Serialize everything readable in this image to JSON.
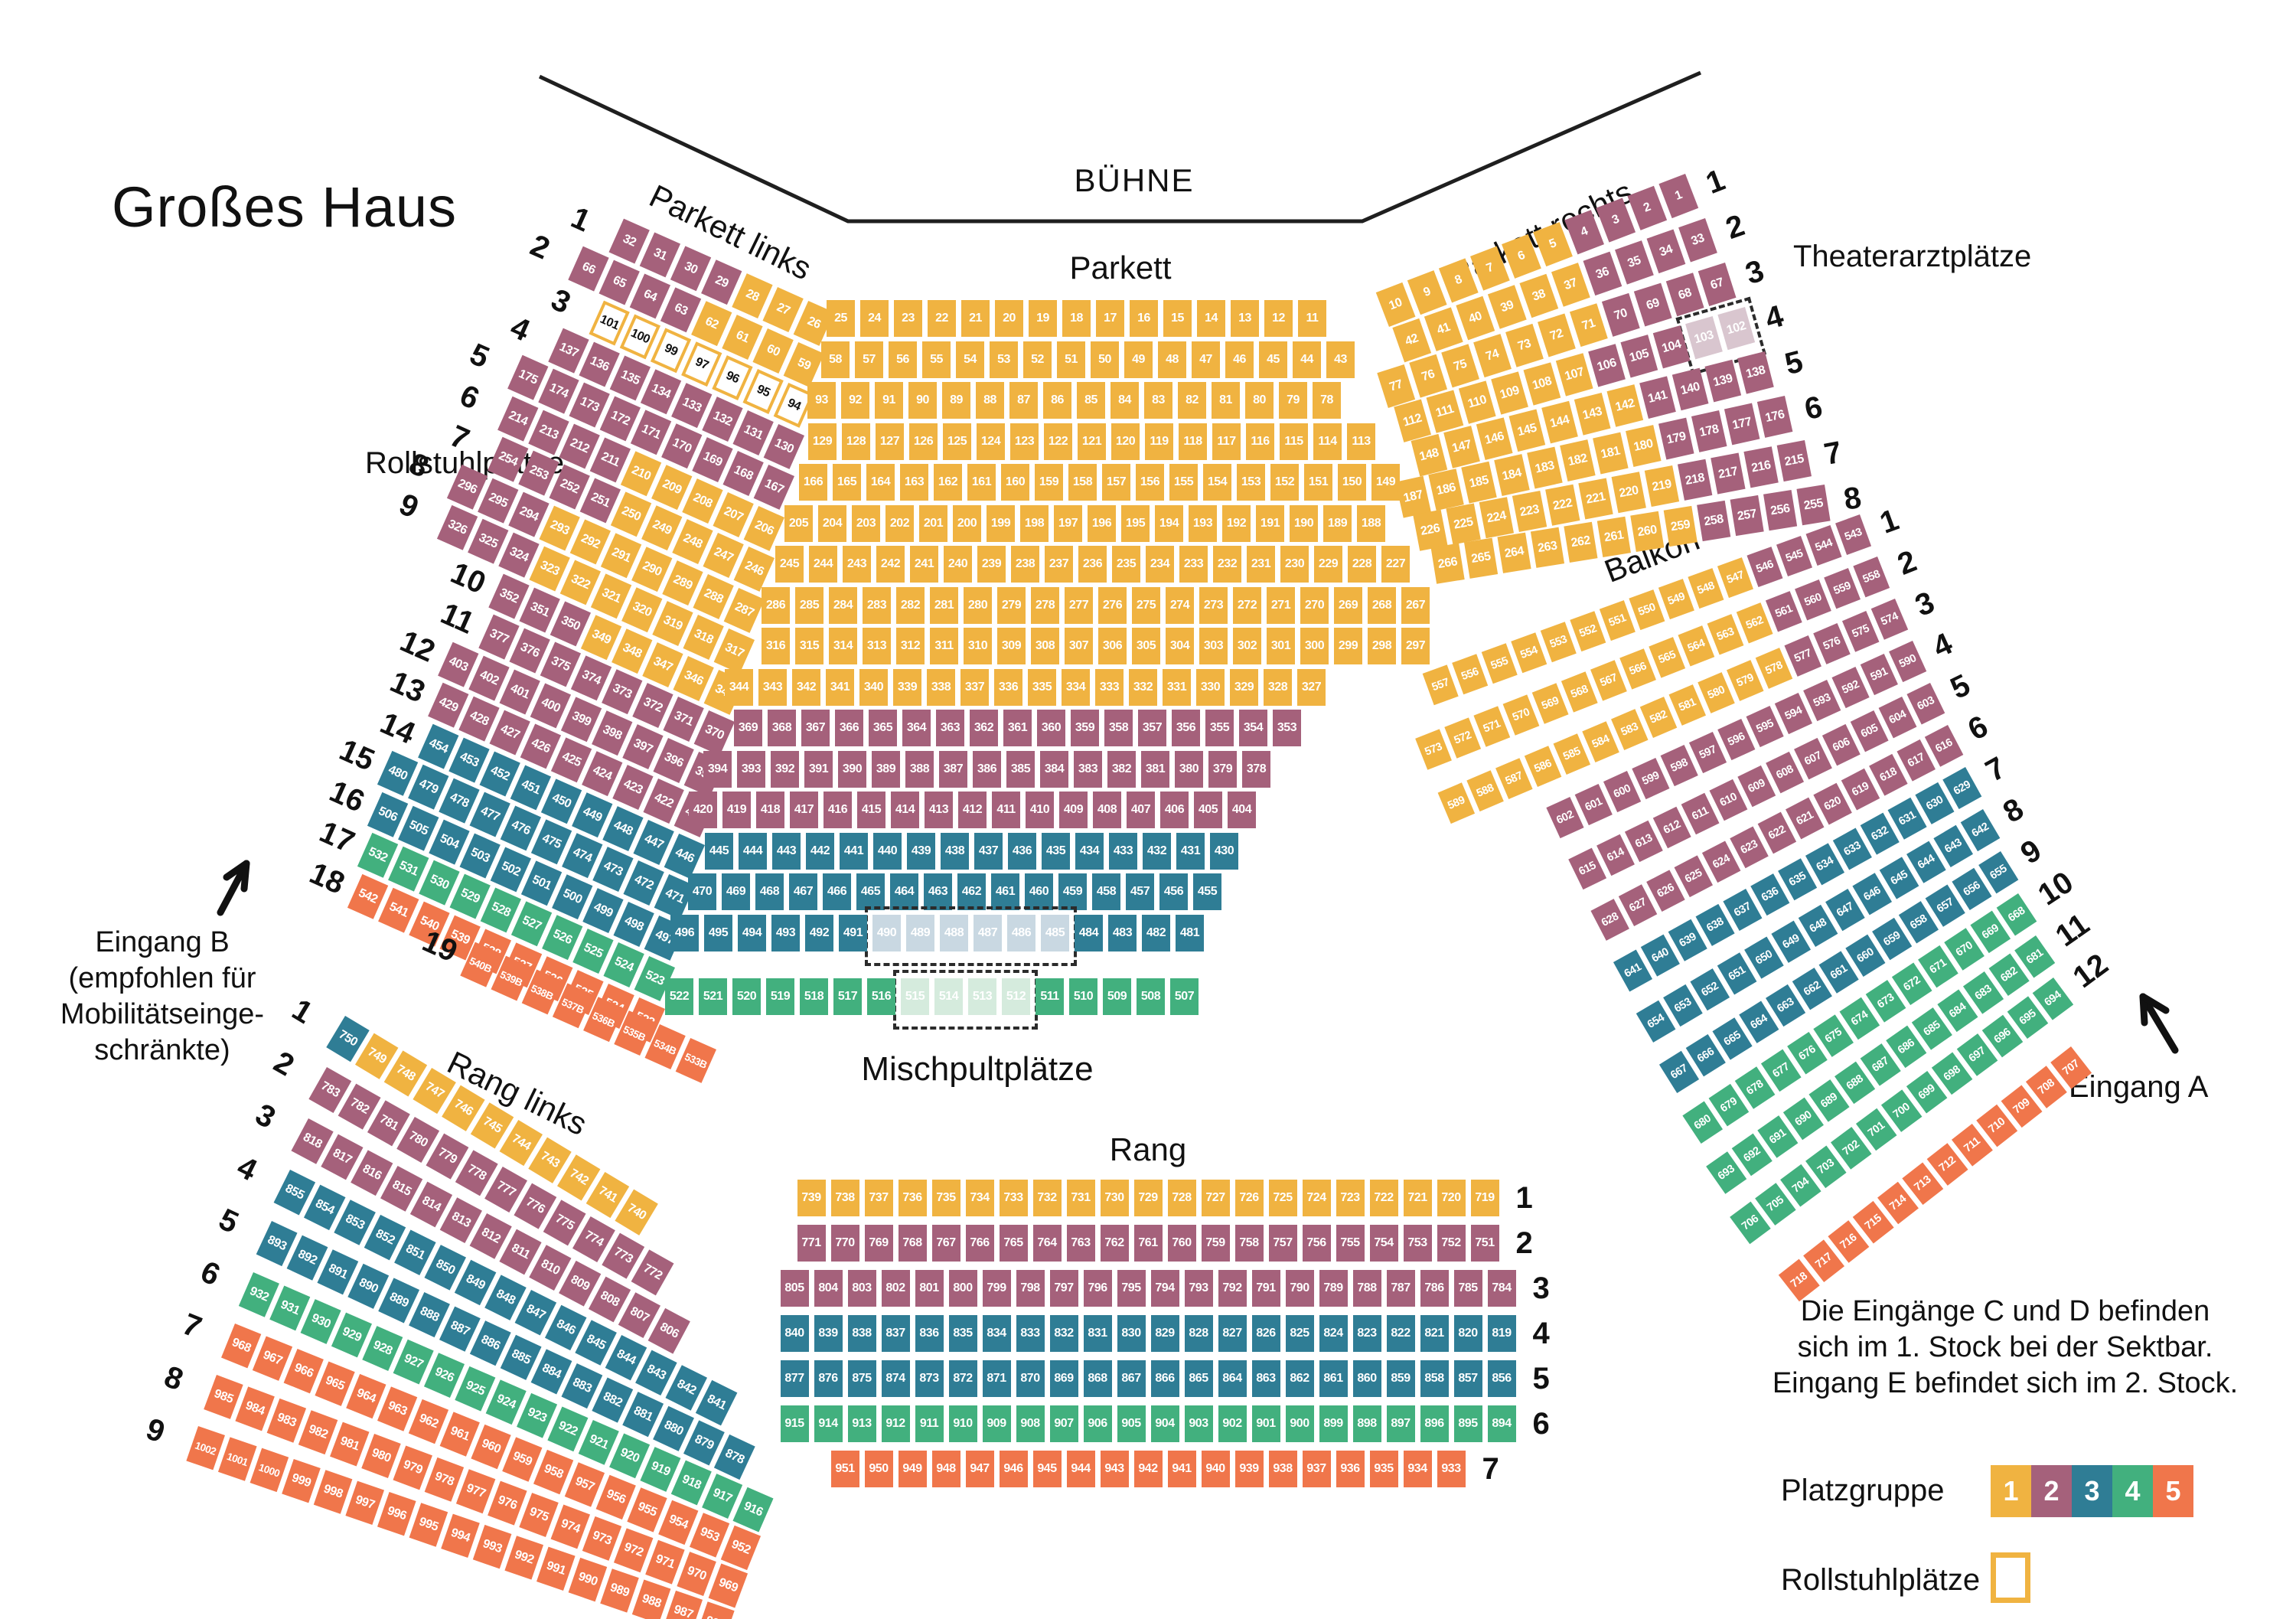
{
  "title": "Großes Haus",
  "labels": {
    "buehne": "BÜHNE",
    "parkett": "Parkett",
    "parkett_links": "Parkett links",
    "parkett_rechts": "Parkett rechts",
    "balkon": "Balkon",
    "rang": "Rang",
    "rang_links": "Rang links",
    "mischpult": "Mischpultplätze",
    "rollstuhl": "Rollstuhlplätze",
    "theaterarzt": "Theaterarztplätze",
    "eingang_a": "Eingang A",
    "eingang_b_lines": [
      "Eingang B",
      "(empfohlen für",
      "Mobilitätseinge-",
      "schränkte)"
    ],
    "note_lines": [
      "Die Eingänge C und D befinden",
      "sich im 1. Stock bei der Sektbar.",
      "Eingang E befindet sich im 2. Stock."
    ]
  },
  "legend": {
    "platzgruppe_label": "Platzgruppe",
    "rollstuhl_label": "Rollstuhlplätze",
    "items": [
      {
        "label": "1",
        "group": "1"
      },
      {
        "label": "2",
        "group": "2"
      },
      {
        "label": "3",
        "group": "3"
      },
      {
        "label": "4",
        "group": "4"
      },
      {
        "label": "5",
        "group": "5"
      }
    ]
  },
  "groups": {
    "1": "#F0B341",
    "2": "#A5617B",
    "3": "#2F7D95",
    "4": "#42B07E",
    "5": "#F0764B",
    "w": "#FFFFFF",
    "t": "#D9C6CF",
    "m3": "#C9D8E2",
    "m4": "#D5EBDD"
  },
  "blocks": [
    {
      "id": "parkett-links",
      "title": "Parkett links",
      "label_side": "left",
      "rows": [
        {
          "label": "1",
          "segs": [
            {
              "f": 32,
              "t": 29,
              "g": "2"
            },
            {
              "f": 28,
              "t": 26,
              "g": "1"
            }
          ]
        },
        {
          "label": "2",
          "segs": [
            {
              "f": 66,
              "t": 63,
              "g": "2"
            },
            {
              "f": 62,
              "t": 59,
              "g": "1"
            }
          ]
        },
        {
          "label": "3",
          "segs": [
            {
              "f": 101,
              "t": 99,
              "g": "w"
            },
            {
              "f": 97,
              "t": 94,
              "g": "w"
            }
          ]
        },
        {
          "label": "4",
          "segs": [
            {
              "f": 137,
              "t": 130,
              "g": "2"
            }
          ]
        },
        {
          "label": "5",
          "segs": [
            {
              "f": 175,
              "t": 167,
              "g": "2"
            }
          ]
        },
        {
          "label": "6",
          "segs": [
            {
              "f": 214,
              "t": 211,
              "g": "2"
            },
            {
              "f": 210,
              "t": 206,
              "g": "1"
            }
          ]
        },
        {
          "label": "7",
          "segs": [
            {
              "f": 254,
              "t": 251,
              "g": "2"
            },
            {
              "f": 250,
              "t": 246,
              "g": "1"
            }
          ]
        },
        {
          "label": "8",
          "segs": [
            {
              "f": 296,
              "t": 294,
              "g": "2"
            },
            {
              "f": 293,
              "t": 287,
              "g": "1"
            }
          ]
        },
        {
          "label": "9",
          "segs": [
            {
              "f": 326,
              "t": 324,
              "g": "2"
            },
            {
              "f": 323,
              "t": 317,
              "g": "1"
            }
          ]
        },
        {
          "label": "10",
          "segs": [
            {
              "f": 352,
              "t": 350,
              "g": "2"
            },
            {
              "f": 349,
              "t": 345,
              "g": "1"
            }
          ]
        },
        {
          "label": "11",
          "segs": [
            {
              "f": 377,
              "t": 370,
              "g": "2"
            }
          ]
        },
        {
          "label": "12",
          "segs": [
            {
              "f": 403,
              "t": 395,
              "g": "2"
            }
          ]
        },
        {
          "label": "13",
          "segs": [
            {
              "f": 429,
              "t": 421,
              "g": "2"
            }
          ]
        },
        {
          "label": "14",
          "segs": [
            {
              "f": 454,
              "t": 446,
              "g": "3"
            }
          ]
        },
        {
          "label": "15",
          "segs": [
            {
              "f": 480,
              "t": 471,
              "g": "3"
            }
          ]
        },
        {
          "label": "16",
          "segs": [
            {
              "f": 506,
              "t": 497,
              "g": "3"
            }
          ]
        },
        {
          "label": "17",
          "segs": [
            {
              "f": 532,
              "t": 523,
              "g": "4"
            }
          ]
        },
        {
          "label": "18",
          "segs": [
            {
              "f": 542,
              "t": 533,
              "g": "5"
            }
          ]
        },
        {
          "label": "19",
          "segs": [
            {
              "f": 540,
              "t": 533,
              "g": "5",
              "sfx": "B"
            }
          ]
        }
      ]
    },
    {
      "id": "parkett-center",
      "title": "Parkett",
      "label_side": null,
      "rows": [
        {
          "label": null,
          "segs": [
            {
              "f": 25,
              "t": 11,
              "g": "1"
            }
          ]
        },
        {
          "label": null,
          "segs": [
            {
              "f": 58,
              "t": 43,
              "g": "1"
            }
          ]
        },
        {
          "label": null,
          "segs": [
            {
              "f": 93,
              "t": 78,
              "g": "1"
            }
          ]
        },
        {
          "label": null,
          "segs": [
            {
              "f": 129,
              "t": 113,
              "g": "1"
            }
          ]
        },
        {
          "label": null,
          "segs": [
            {
              "f": 166,
              "t": 149,
              "g": "1"
            }
          ]
        },
        {
          "label": null,
          "segs": [
            {
              "f": 205,
              "t": 188,
              "g": "1"
            }
          ]
        },
        {
          "label": null,
          "segs": [
            {
              "f": 245,
              "t": 227,
              "g": "1"
            }
          ]
        },
        {
          "label": null,
          "segs": [
            {
              "f": 286,
              "t": 267,
              "g": "1"
            }
          ]
        },
        {
          "label": null,
          "segs": [
            {
              "f": 316,
              "t": 297,
              "g": "1"
            }
          ]
        },
        {
          "label": null,
          "segs": [
            {
              "f": 344,
              "t": 327,
              "g": "1"
            }
          ]
        },
        {
          "label": null,
          "segs": [
            {
              "f": 369,
              "t": 353,
              "g": "2"
            }
          ]
        },
        {
          "label": null,
          "segs": [
            {
              "f": 394,
              "t": 378,
              "g": "2"
            }
          ]
        },
        {
          "label": null,
          "segs": [
            {
              "f": 420,
              "t": 404,
              "g": "2"
            }
          ]
        },
        {
          "label": null,
          "segs": [
            {
              "f": 445,
              "t": 430,
              "g": "3"
            }
          ]
        },
        {
          "label": null,
          "segs": [
            {
              "f": 470,
              "t": 455,
              "g": "3"
            }
          ]
        },
        {
          "label": null,
          "segs": [
            {
              "f": 496,
              "t": 491,
              "g": "3"
            },
            {
              "f": 490,
              "t": 485,
              "g": "m3",
              "dash": true
            },
            {
              "f": 484,
              "t": 481,
              "g": "3"
            }
          ]
        },
        {
          "label": null,
          "segs": [
            {
              "f": 522,
              "t": 516,
              "g": "4"
            },
            {
              "f": 515,
              "t": 512,
              "g": "m4",
              "dash": true
            },
            {
              "f": 511,
              "t": 507,
              "g": "4"
            }
          ]
        }
      ]
    },
    {
      "id": "parkett-rechts",
      "title": "Parkett rechts",
      "label_side": "right",
      "rows": [
        {
          "label": "1",
          "segs": [
            {
              "f": 10,
              "t": 5,
              "g": "1"
            },
            {
              "f": 4,
              "t": 1,
              "g": "2"
            }
          ]
        },
        {
          "label": "2",
          "segs": [
            {
              "f": 42,
              "t": 37,
              "g": "1"
            },
            {
              "f": 36,
              "t": 33,
              "g": "2"
            }
          ]
        },
        {
          "label": "3",
          "segs": [
            {
              "f": 77,
              "t": 71,
              "g": "1"
            },
            {
              "f": 70,
              "t": 67,
              "g": "2"
            }
          ]
        },
        {
          "label": "4",
          "segs": [
            {
              "f": 112,
              "t": 107,
              "g": "1"
            },
            {
              "f": 106,
              "t": 104,
              "g": "2"
            },
            {
              "f": 103,
              "t": 102,
              "g": "t",
              "dash": true
            }
          ]
        },
        {
          "label": "5",
          "segs": [
            {
              "f": 148,
              "t": 142,
              "g": "1"
            },
            {
              "f": 141,
              "t": 138,
              "g": "2"
            }
          ]
        },
        {
          "label": "6",
          "segs": [
            {
              "f": 187,
              "t": 180,
              "g": "1"
            },
            {
              "f": 179,
              "t": 176,
              "g": "2"
            }
          ]
        },
        {
          "label": "7",
          "segs": [
            {
              "f": 226,
              "t": 219,
              "g": "1"
            },
            {
              "f": 218,
              "t": 215,
              "g": "2"
            }
          ]
        },
        {
          "label": "8",
          "segs": [
            {
              "f": 266,
              "t": 259,
              "g": "1"
            },
            {
              "f": 258,
              "t": 255,
              "g": "2"
            }
          ]
        }
      ]
    },
    {
      "id": "balkon",
      "title": "Balkon",
      "label_side": "right",
      "rows": [
        {
          "label": "1",
          "segs": [
            {
              "f": 557,
              "t": 547,
              "g": "1"
            },
            {
              "f": 546,
              "t": 543,
              "g": "2"
            }
          ]
        },
        {
          "label": "2",
          "segs": [
            {
              "f": 573,
              "t": 562,
              "g": "1"
            },
            {
              "f": 561,
              "t": 558,
              "g": "2"
            }
          ]
        },
        {
          "label": "3",
          "segs": [
            {
              "f": 589,
              "t": 578,
              "g": "1"
            },
            {
              "f": 577,
              "t": 574,
              "g": "2"
            }
          ]
        },
        {
          "label": "4",
          "segs": [
            {
              "f": 602,
              "t": 590,
              "g": "2"
            }
          ]
        },
        {
          "label": "5",
          "segs": [
            {
              "f": 615,
              "t": 603,
              "g": "2"
            }
          ]
        },
        {
          "label": "6",
          "segs": [
            {
              "f": 628,
              "t": 616,
              "g": "2"
            }
          ]
        },
        {
          "label": "7",
          "segs": [
            {
              "f": 641,
              "t": 629,
              "g": "3"
            }
          ]
        },
        {
          "label": "8",
          "segs": [
            {
              "f": 654,
              "t": 642,
              "g": "3"
            }
          ]
        },
        {
          "label": "9",
          "segs": [
            {
              "f": 667,
              "t": 655,
              "g": "3"
            }
          ]
        },
        {
          "label": "10",
          "segs": [
            {
              "f": 680,
              "t": 668,
              "g": "4"
            }
          ]
        },
        {
          "label": "11",
          "segs": [
            {
              "f": 693,
              "t": 681,
              "g": "4"
            }
          ]
        },
        {
          "label": "12",
          "segs": [
            {
              "f": 706,
              "t": 694,
              "g": "4"
            }
          ]
        },
        {
          "label": null,
          "segs": [
            {
              "f": 718,
              "t": 707,
              "g": "5"
            }
          ]
        }
      ]
    },
    {
      "id": "rang-links",
      "title": "Rang links",
      "label_side": "left",
      "rows": [
        {
          "label": "1",
          "segs": [
            {
              "f": 750,
              "t": 750,
              "g": "3"
            },
            {
              "f": 749,
              "t": 740,
              "g": "1"
            }
          ]
        },
        {
          "label": "2",
          "segs": [
            {
              "f": 783,
              "t": 772,
              "g": "2"
            }
          ]
        },
        {
          "label": "3",
          "segs": [
            {
              "f": 818,
              "t": 806,
              "g": "2"
            }
          ]
        },
        {
          "label": "4",
          "segs": [
            {
              "f": 855,
              "t": 841,
              "g": "3"
            }
          ]
        },
        {
          "label": "5",
          "segs": [
            {
              "f": 893,
              "t": 878,
              "g": "3"
            }
          ]
        },
        {
          "label": "6",
          "segs": [
            {
              "f": 932,
              "t": 916,
              "g": "4"
            }
          ]
        },
        {
          "label": "7",
          "segs": [
            {
              "f": 968,
              "t": 952,
              "g": "5"
            }
          ]
        },
        {
          "label": "8",
          "segs": [
            {
              "f": 985,
              "t": 969,
              "g": "5"
            }
          ]
        },
        {
          "label": "9",
          "segs": [
            {
              "f": 1002,
              "t": 986,
              "g": "5"
            }
          ]
        }
      ]
    },
    {
      "id": "rang-center",
      "title": "Rang",
      "label_side": "right",
      "rows": [
        {
          "label": "1",
          "segs": [
            {
              "f": 739,
              "t": 719,
              "g": "1"
            }
          ]
        },
        {
          "label": "2",
          "segs": [
            {
              "f": 771,
              "t": 751,
              "g": "2"
            }
          ]
        },
        {
          "label": "3",
          "segs": [
            {
              "f": 805,
              "t": 784,
              "g": "2"
            }
          ]
        },
        {
          "label": "4",
          "segs": [
            {
              "f": 840,
              "t": 819,
              "g": "3"
            }
          ]
        },
        {
          "label": "5",
          "segs": [
            {
              "f": 877,
              "t": 856,
              "g": "3"
            }
          ]
        },
        {
          "label": "6",
          "segs": [
            {
              "f": 915,
              "t": 894,
              "g": "4"
            }
          ]
        },
        {
          "label": "7",
          "segs": [
            {
              "f": 951,
              "t": 933,
              "g": "5"
            }
          ]
        }
      ]
    }
  ]
}
